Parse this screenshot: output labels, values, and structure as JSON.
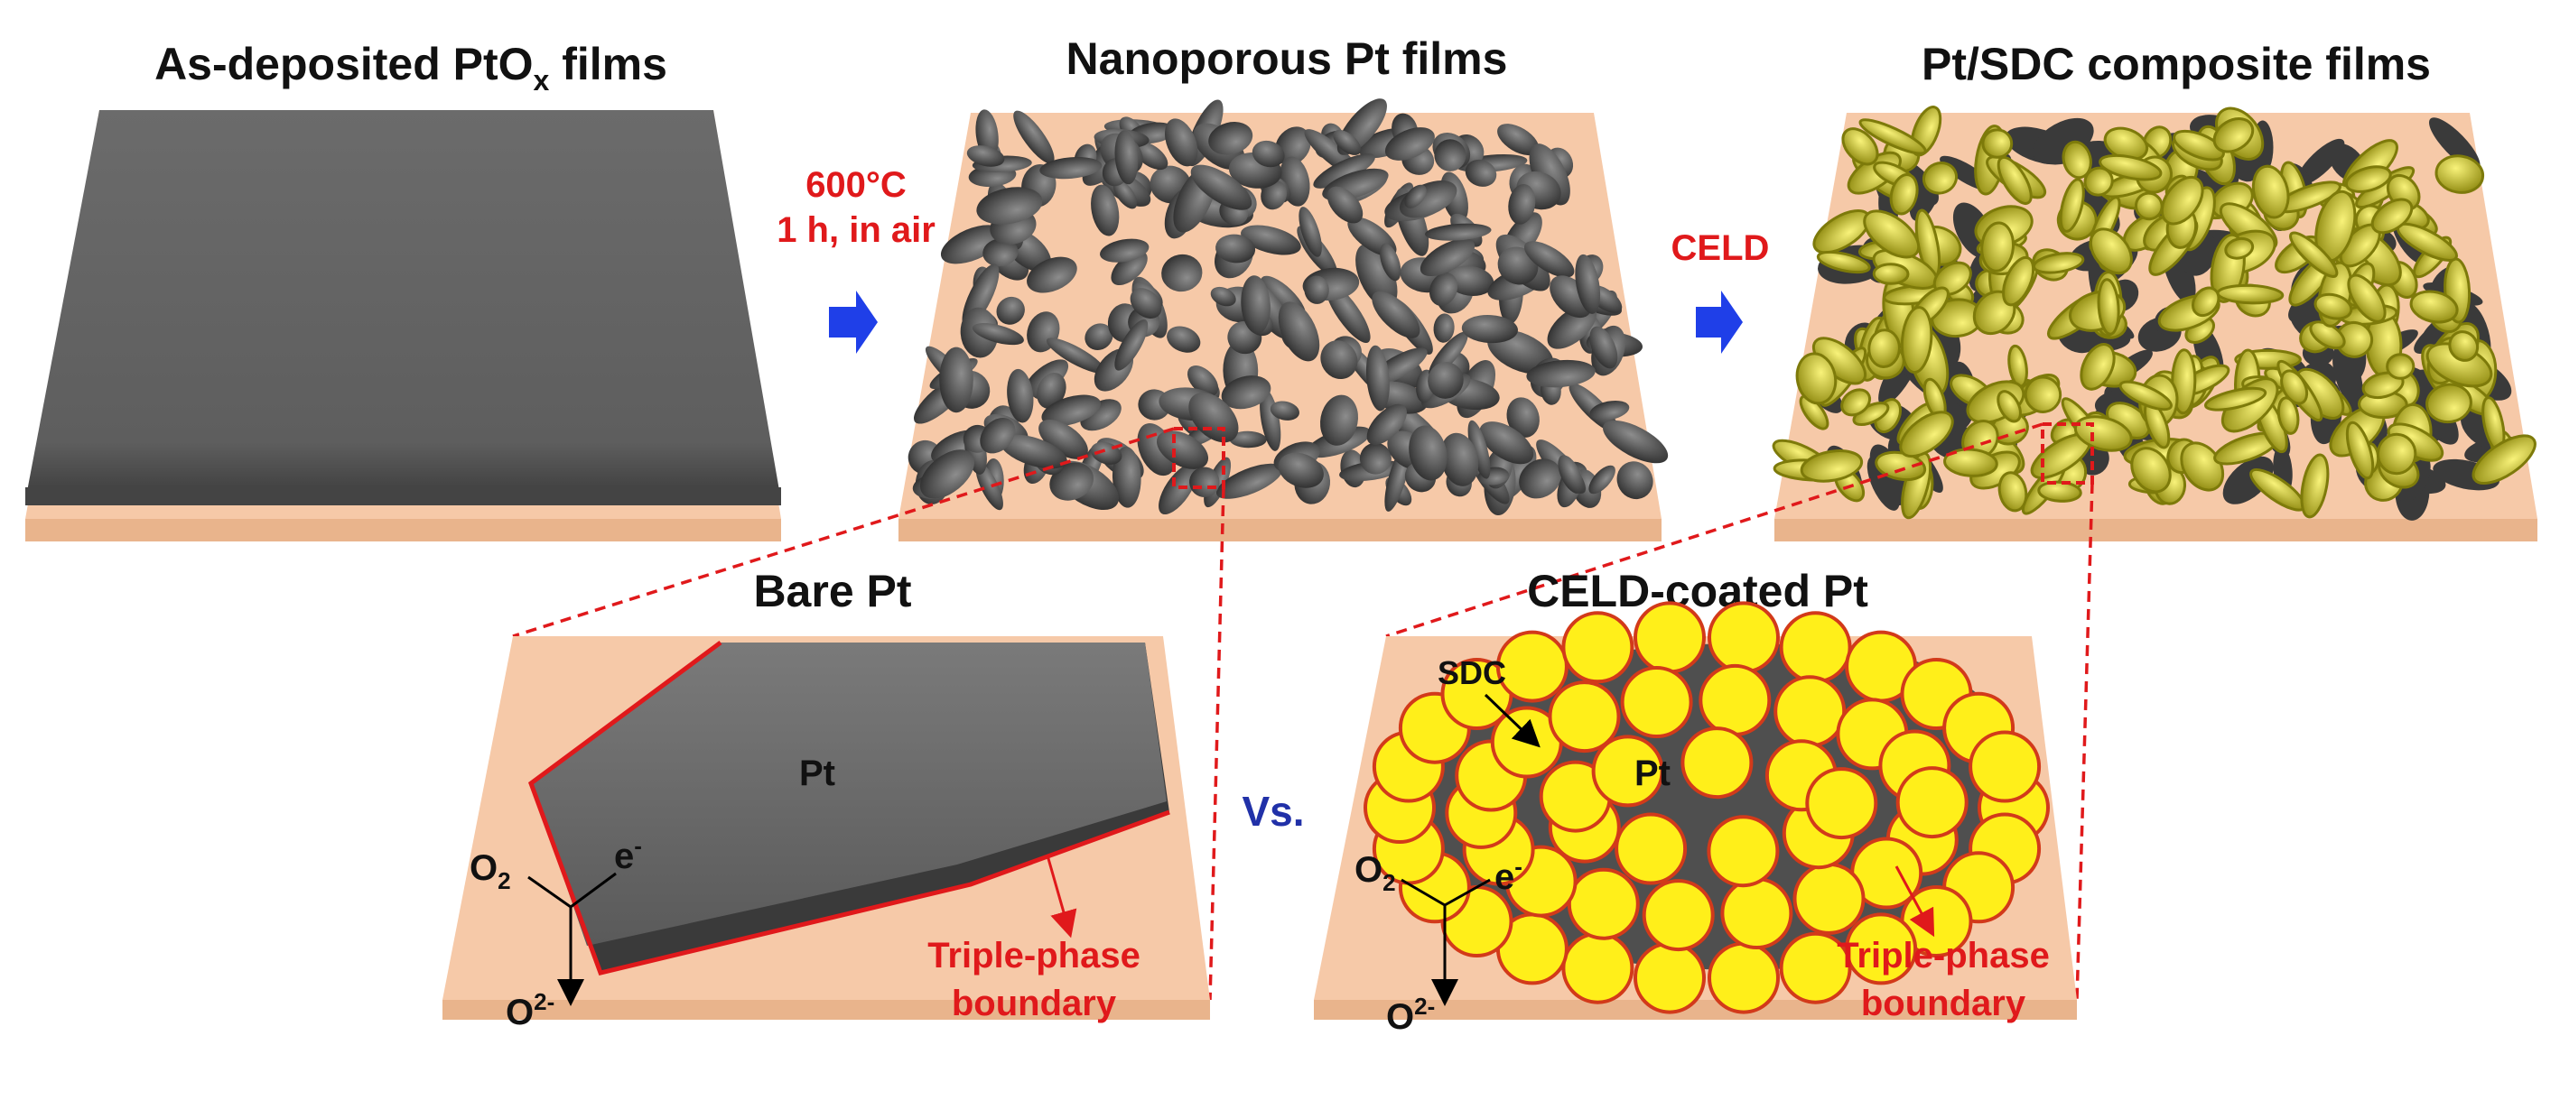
{
  "titles": {
    "panel1_main": "As-deposited PtO",
    "panel1_sub": "x",
    "panel1_end": " films",
    "panel2": "Nanoporous Pt films",
    "panel3": "Pt/SDC composite films",
    "bare": "Bare Pt",
    "coated": "CELD-coated Pt"
  },
  "steps": {
    "step1_line1": "600°C",
    "step1_line2": "1 h, in air",
    "step2": "CELD"
  },
  "vs": "Vs.",
  "labels": {
    "pt_bare": "Pt",
    "pt_coated": "Pt",
    "sdc": "SDC",
    "o2_base": "O",
    "o2_sub": "2",
    "e_base": "e",
    "e_sup": "-",
    "o2m_base": "O",
    "o2m_sup": "2-",
    "tpb_line1": "Triple-phase",
    "tpb_line2": "boundary"
  },
  "colors": {
    "substrate": "#f6c9a8",
    "substrate_side": "#e9b48c",
    "film": "#6f6f6f",
    "pt_dark": "#4a4a4a",
    "sdc_fill": "#ffef1a",
    "sdc_edge": "#d4a000",
    "boundary": "#e0191b",
    "arrow": "#1f3fe8",
    "vs_text": "#2131a8"
  }
}
